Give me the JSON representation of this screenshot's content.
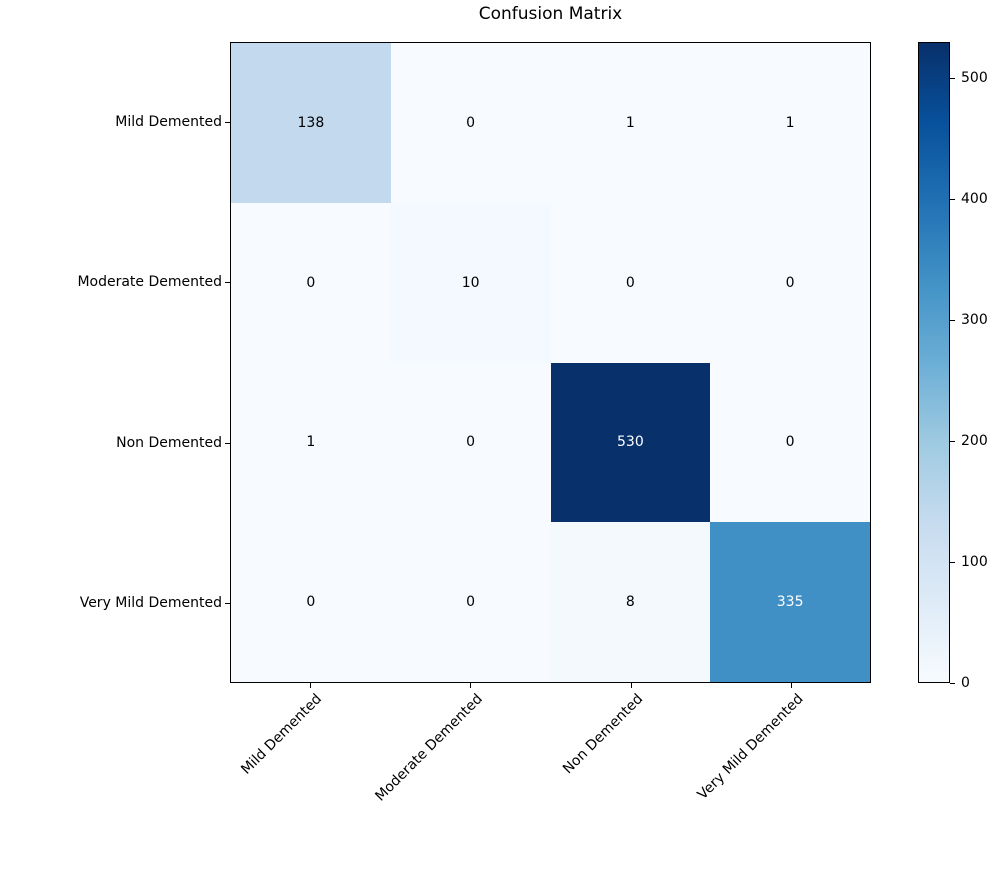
{
  "title": "Confusion Matrix",
  "chart_data": {
    "type": "heatmap",
    "title": "Confusion Matrix",
    "row_labels": [
      "Mild Demented",
      "Moderate Demented",
      "Non Demented",
      "Very Mild Demented"
    ],
    "col_labels": [
      "Mild Demented",
      "Moderate Demented",
      "Non Demented",
      "Very Mild Demented"
    ],
    "values": [
      [
        138,
        0,
        1,
        1
      ],
      [
        0,
        10,
        0,
        0
      ],
      [
        1,
        0,
        530,
        0
      ],
      [
        0,
        0,
        8,
        335
      ]
    ],
    "vmin": 0,
    "vmax": 530,
    "colormap": "Blues",
    "colormap_stops": [
      "#f7fbff",
      "#deebf7",
      "#c6dbef",
      "#9ecae1",
      "#6baed6",
      "#4292c6",
      "#2171b5",
      "#08519c",
      "#08306b"
    ],
    "colorbar_ticks": [
      0,
      100,
      200,
      300,
      400,
      500
    ],
    "colorbar_position": "right",
    "x_tick_rotation_deg": 45,
    "grid": false,
    "cell_text_color_dark_cells": "#ffffff",
    "cell_text_color_light_cells": "#000000",
    "axes_edge_color": "#000000",
    "background_color": "#ffffff"
  }
}
